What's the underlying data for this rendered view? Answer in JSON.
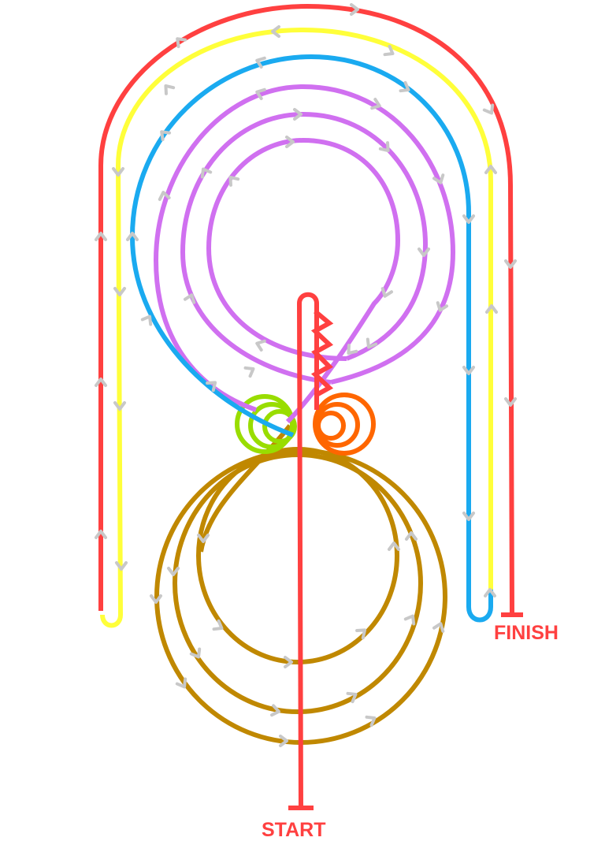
{
  "labels": {
    "start": "START",
    "finish": "FINISH"
  },
  "colors": {
    "red": "#ff4040",
    "yellow": "#ffff3a",
    "blue": "#1aaaf0",
    "purple": "#d070f0",
    "green": "#99dd00",
    "orange": "#ff6600",
    "brown": "#c08800",
    "arrow": "#c8c8c8",
    "label": "#ff4040"
  },
  "icons": {
    "arrow": "chevron-arrow-icon"
  }
}
